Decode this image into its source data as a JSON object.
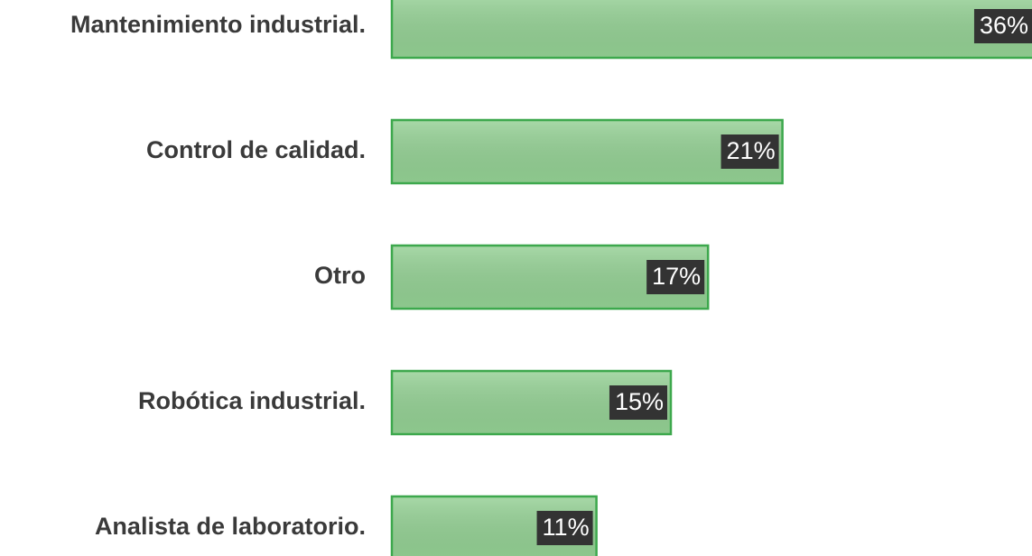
{
  "chart_data": {
    "type": "hbar",
    "categories": [
      "Mantenimiento industrial.",
      "Control de calidad.",
      "Otro",
      "Robótica industrial.",
      "Analista de laboratorio."
    ],
    "values": [
      36,
      21,
      17,
      15,
      11
    ],
    "value_labels": [
      "36%",
      "21%",
      "17%",
      "15%",
      "11%"
    ],
    "color": "#93cf93"
  }
}
